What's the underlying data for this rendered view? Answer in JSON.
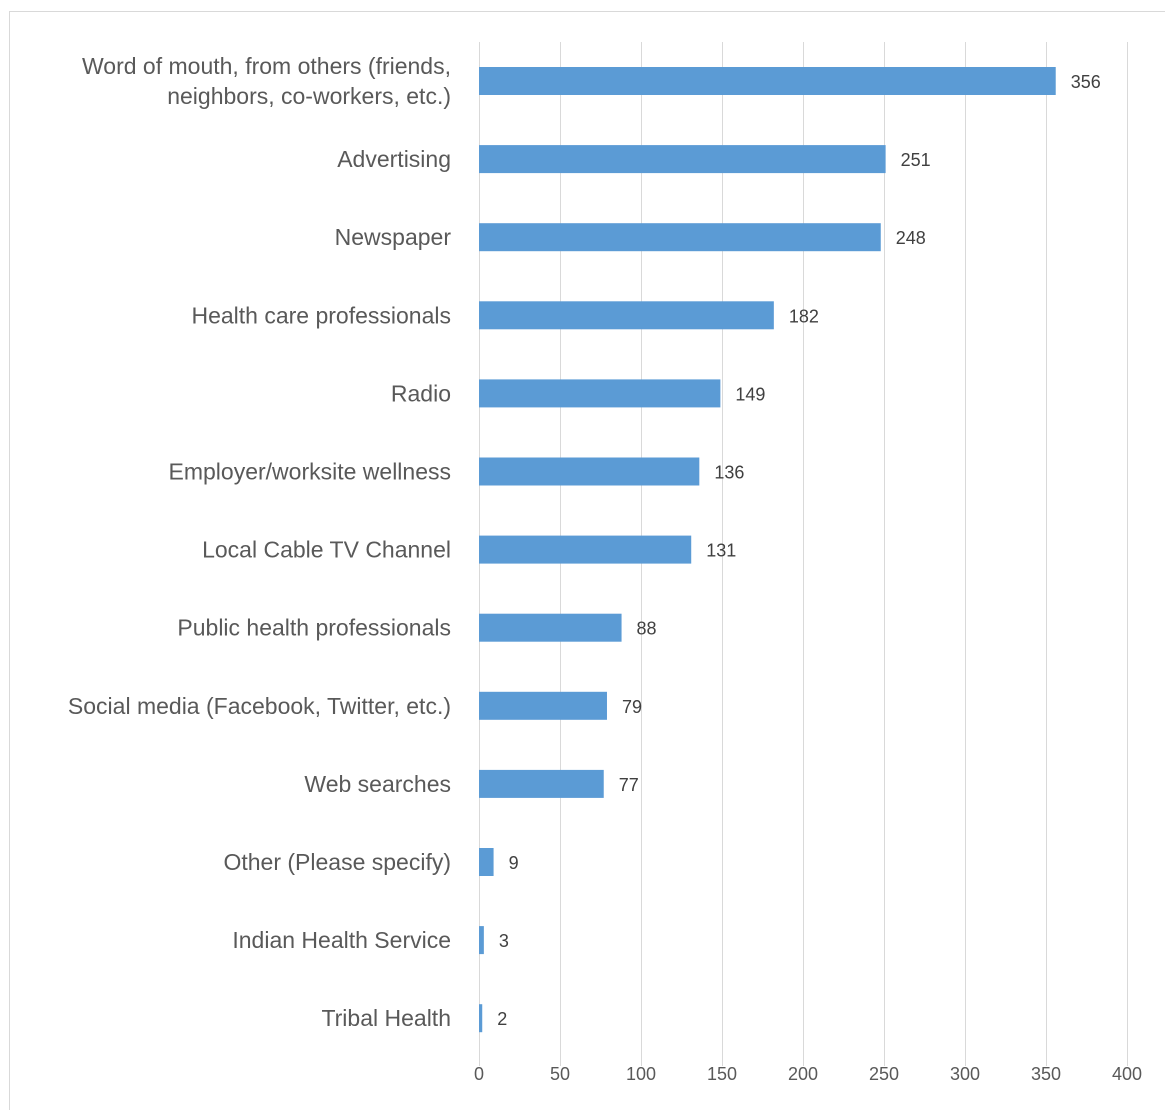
{
  "chart_data": {
    "type": "bar",
    "orientation": "horizontal",
    "categories": [
      [
        "Word of mouth, from others (friends,",
        "neighbors, co-workers, etc.)"
      ],
      [
        "Advertising"
      ],
      [
        "Newspaper"
      ],
      [
        "Health care professionals"
      ],
      [
        "Radio"
      ],
      [
        "Employer/worksite wellness"
      ],
      [
        "Local Cable TV Channel"
      ],
      [
        "Public health professionals"
      ],
      [
        "Social media (Facebook, Twitter, etc.)"
      ],
      [
        "Web searches"
      ],
      [
        "Other (Please specify)"
      ],
      [
        "Indian Health Service"
      ],
      [
        "Tribal Health"
      ]
    ],
    "values": [
      356,
      251,
      248,
      182,
      149,
      136,
      131,
      88,
      79,
      77,
      9,
      3,
      2
    ],
    "x_ticks": [
      0,
      50,
      100,
      150,
      200,
      250,
      300,
      350,
      400
    ],
    "xlim": [
      0,
      400
    ],
    "grid": "vertical",
    "data_labels": true,
    "legend": "none",
    "title": "",
    "xlabel": "",
    "ylabel": "",
    "colors": {
      "bar": "#5b9bd5",
      "grid": "#d9d9d9",
      "text": "#595959",
      "data_label": "#404040"
    }
  }
}
